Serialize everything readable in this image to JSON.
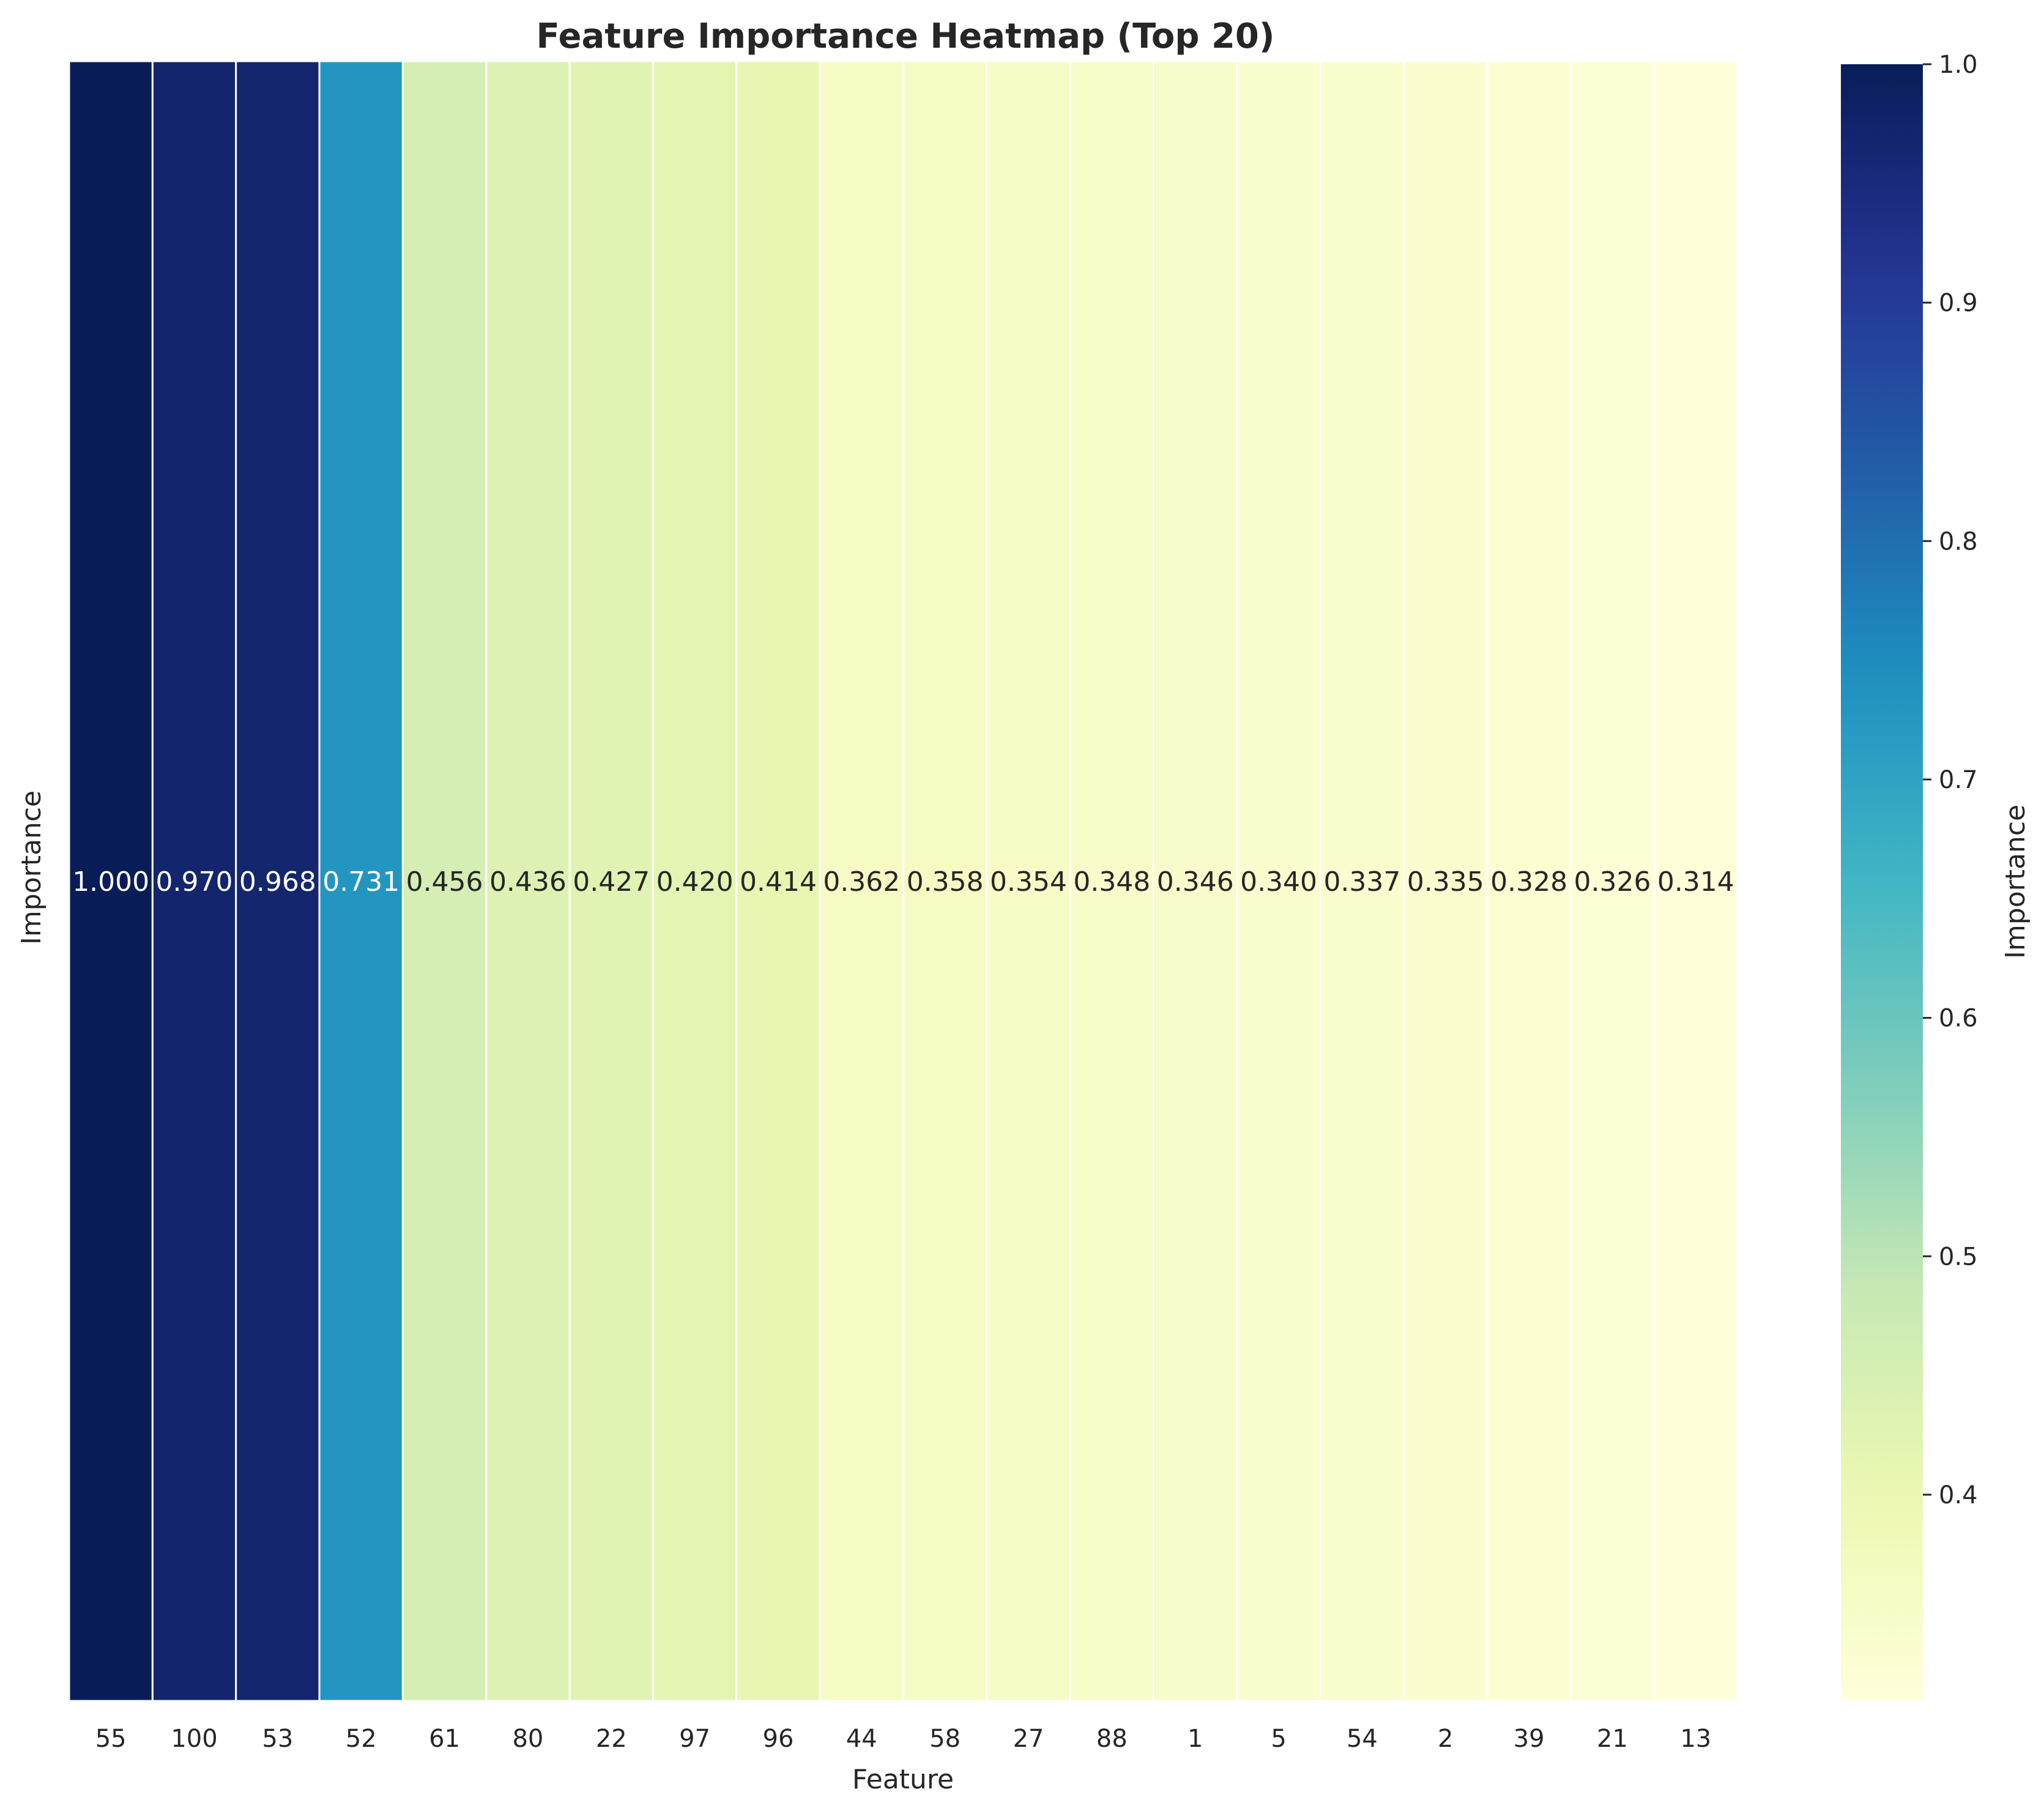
{
  "chart_data": {
    "type": "heatmap",
    "title": "Feature Importance Heatmap (Top 20)",
    "xlabel": "Feature",
    "ylabel": "Importance",
    "row_labels": [],
    "categories": [
      "55",
      "100",
      "53",
      "52",
      "61",
      "80",
      "22",
      "97",
      "96",
      "44",
      "58",
      "27",
      "88",
      "1",
      "5",
      "54",
      "2",
      "39",
      "21",
      "13"
    ],
    "values": [
      1.0,
      0.97,
      0.968,
      0.731,
      0.456,
      0.436,
      0.427,
      0.42,
      0.414,
      0.362,
      0.358,
      0.354,
      0.348,
      0.346,
      0.34,
      0.337,
      0.335,
      0.328,
      0.326,
      0.314
    ],
    "annotations": [
      "1.000",
      "0.970",
      "0.968",
      "0.731",
      "0.456",
      "0.436",
      "0.427",
      "0.420",
      "0.414",
      "0.362",
      "0.358",
      "0.354",
      "0.348",
      "0.346",
      "0.340",
      "0.337",
      "0.335",
      "0.328",
      "0.326",
      "0.314"
    ],
    "colormap": "YlGnBu",
    "colorbar": {
      "label": "Importance",
      "vmin": 0.314,
      "vmax": 1.0,
      "ticks": [
        "0.4",
        "0.5",
        "0.6",
        "0.7",
        "0.8",
        "0.9",
        "1.0"
      ]
    }
  }
}
